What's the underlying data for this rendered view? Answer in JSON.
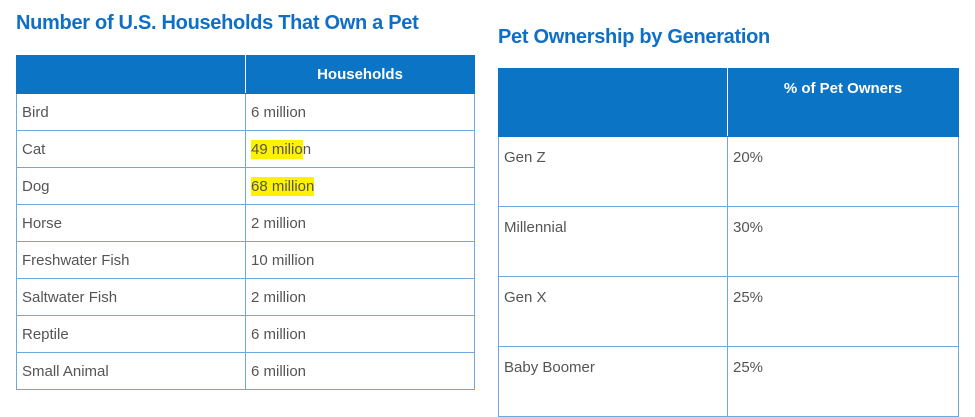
{
  "left": {
    "title": "Number of U.S. Households That Own a Pet",
    "header": {
      "col1": "",
      "col2": "Households"
    },
    "rows": [
      {
        "animal": "Bird",
        "value": "6 million"
      },
      {
        "animal": "Cat",
        "value_highlighted": "49 milio",
        "value_rest": "n"
      },
      {
        "animal": "Dog",
        "value_highlighted": "68 million",
        "value_rest": ""
      },
      {
        "animal": "Horse",
        "value": "2 million"
      },
      {
        "animal": "Freshwater Fish",
        "value": "10 million"
      },
      {
        "animal": "Saltwater Fish",
        "value": "2 million"
      },
      {
        "animal": "Reptile",
        "value": "6 million"
      },
      {
        "animal": "Small Animal",
        "value": "6 million"
      }
    ]
  },
  "right": {
    "title": "Pet Ownership by Generation",
    "header": {
      "col1": "",
      "col2": "% of Pet Owners"
    },
    "rows": [
      {
        "generation": "Gen Z",
        "percent": "20%"
      },
      {
        "generation": "Millennial",
        "percent": "30%"
      },
      {
        "generation": "Gen X",
        "percent": "25%"
      },
      {
        "generation": "Baby Boomer",
        "percent": "25%"
      }
    ]
  },
  "colors": {
    "title": "#0f6fc6",
    "header_bg": "#0b74c4",
    "border": "#6fa8dc",
    "highlight": "#fff200"
  }
}
